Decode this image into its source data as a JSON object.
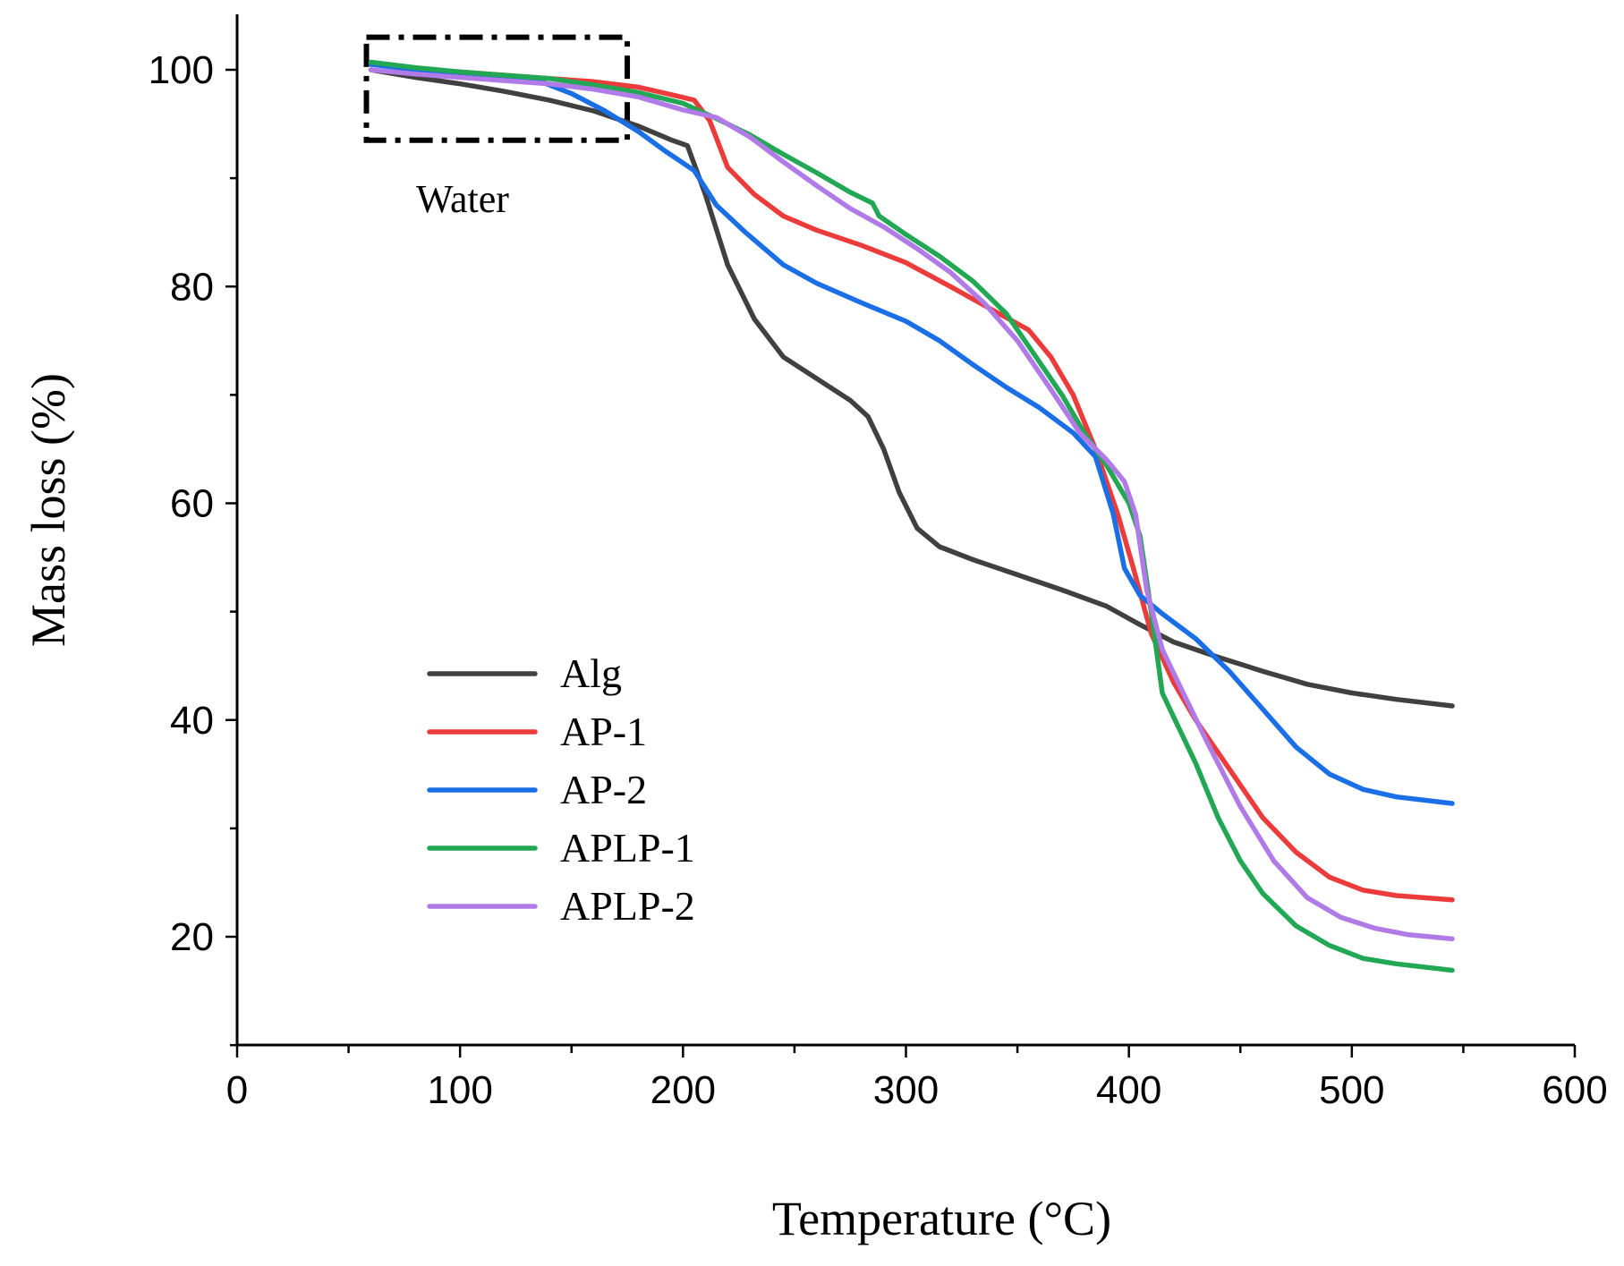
{
  "chart_data": {
    "type": "line",
    "title": "",
    "xlabel": "Temperature (°C)",
    "ylabel": "Mass loss (%)",
    "xlim": [
      0,
      600
    ],
    "ylim": [
      10,
      105
    ],
    "x_ticks": [
      0,
      100,
      200,
      300,
      400,
      500,
      600
    ],
    "y_ticks": [
      20,
      40,
      60,
      80,
      100
    ],
    "grid": false,
    "legend_position": "lower-left",
    "series": [
      {
        "name": "Alg",
        "color": "#404040",
        "points": [
          [
            60,
            100
          ],
          [
            80,
            99.3
          ],
          [
            100,
            98.7
          ],
          [
            120,
            98
          ],
          [
            140,
            97.2
          ],
          [
            160,
            96.2
          ],
          [
            180,
            94.8
          ],
          [
            195,
            93.5
          ],
          [
            202,
            93
          ],
          [
            210,
            88.5
          ],
          [
            220,
            82
          ],
          [
            232,
            77
          ],
          [
            245,
            73.5
          ],
          [
            260,
            71.5
          ],
          [
            275,
            69.5
          ],
          [
            283,
            68
          ],
          [
            290,
            65
          ],
          [
            297,
            61
          ],
          [
            305,
            57.7
          ],
          [
            315,
            56
          ],
          [
            330,
            54.8
          ],
          [
            350,
            53.4
          ],
          [
            370,
            52
          ],
          [
            390,
            50.5
          ],
          [
            405,
            48.8
          ],
          [
            420,
            47.2
          ],
          [
            440,
            45.8
          ],
          [
            460,
            44.5
          ],
          [
            480,
            43.3
          ],
          [
            500,
            42.5
          ],
          [
            520,
            41.9
          ],
          [
            545,
            41.3
          ]
        ]
      },
      {
        "name": "AP-1",
        "color": "#ec3b3b",
        "points": [
          [
            60,
            100.5
          ],
          [
            80,
            100.1
          ],
          [
            100,
            99.8
          ],
          [
            120,
            99.5
          ],
          [
            140,
            99.2
          ],
          [
            160,
            98.9
          ],
          [
            180,
            98.4
          ],
          [
            195,
            97.7
          ],
          [
            205,
            97.2
          ],
          [
            212,
            95.3
          ],
          [
            220,
            91
          ],
          [
            232,
            88.5
          ],
          [
            245,
            86.5
          ],
          [
            260,
            85.2
          ],
          [
            280,
            83.8
          ],
          [
            300,
            82.2
          ],
          [
            320,
            80
          ],
          [
            340,
            77.7
          ],
          [
            355,
            76
          ],
          [
            365,
            73.5
          ],
          [
            375,
            70
          ],
          [
            385,
            65
          ],
          [
            395,
            59
          ],
          [
            402,
            54
          ],
          [
            410,
            48
          ],
          [
            420,
            43.5
          ],
          [
            430,
            40
          ],
          [
            445,
            35.5
          ],
          [
            460,
            31
          ],
          [
            475,
            27.8
          ],
          [
            490,
            25.5
          ],
          [
            505,
            24.3
          ],
          [
            520,
            23.8
          ],
          [
            545,
            23.4
          ]
        ]
      },
      {
        "name": "AP-2",
        "color": "#1a6ee6",
        "points": [
          [
            60,
            100.5
          ],
          [
            80,
            100
          ],
          [
            100,
            99.7
          ],
          [
            120,
            99.4
          ],
          [
            135,
            99
          ],
          [
            150,
            97.8
          ],
          [
            165,
            96.2
          ],
          [
            180,
            94.3
          ],
          [
            192,
            92.5
          ],
          [
            205,
            90.7
          ],
          [
            215,
            87.5
          ],
          [
            228,
            85
          ],
          [
            245,
            82
          ],
          [
            260,
            80.3
          ],
          [
            280,
            78.5
          ],
          [
            300,
            76.8
          ],
          [
            315,
            75
          ],
          [
            330,
            72.8
          ],
          [
            345,
            70.7
          ],
          [
            360,
            68.8
          ],
          [
            375,
            66.5
          ],
          [
            385,
            64.3
          ],
          [
            393,
            59
          ],
          [
            398,
            54
          ],
          [
            405,
            51.5
          ],
          [
            415,
            49.8
          ],
          [
            430,
            47.5
          ],
          [
            445,
            44.5
          ],
          [
            460,
            41
          ],
          [
            475,
            37.5
          ],
          [
            490,
            35
          ],
          [
            505,
            33.6
          ],
          [
            520,
            32.9
          ],
          [
            545,
            32.3
          ]
        ]
      },
      {
        "name": "APLP-1",
        "color": "#22a854",
        "points": [
          [
            60,
            100.7
          ],
          [
            80,
            100.2
          ],
          [
            100,
            99.8
          ],
          [
            120,
            99.5
          ],
          [
            140,
            99.2
          ],
          [
            160,
            98.6
          ],
          [
            180,
            97.9
          ],
          [
            200,
            96.9
          ],
          [
            215,
            95.5
          ],
          [
            230,
            94
          ],
          [
            245,
            92.2
          ],
          [
            260,
            90.5
          ],
          [
            275,
            88.7
          ],
          [
            285,
            87.7
          ],
          [
            288,
            86.5
          ],
          [
            300,
            84.8
          ],
          [
            315,
            82.8
          ],
          [
            330,
            80.5
          ],
          [
            345,
            77.5
          ],
          [
            360,
            73
          ],
          [
            370,
            70
          ],
          [
            380,
            66.5
          ],
          [
            390,
            63.5
          ],
          [
            400,
            60
          ],
          [
            405,
            57
          ],
          [
            410,
            50
          ],
          [
            415,
            42.5
          ],
          [
            420,
            40.3
          ],
          [
            430,
            36
          ],
          [
            440,
            31
          ],
          [
            450,
            27
          ],
          [
            460,
            24
          ],
          [
            475,
            21
          ],
          [
            490,
            19.2
          ],
          [
            505,
            18
          ],
          [
            520,
            17.5
          ],
          [
            545,
            16.9
          ]
        ]
      },
      {
        "name": "APLP-2",
        "color": "#b07be6",
        "points": [
          [
            60,
            100
          ],
          [
            80,
            99.6
          ],
          [
            100,
            99.3
          ],
          [
            120,
            99
          ],
          [
            140,
            98.7
          ],
          [
            160,
            98.2
          ],
          [
            180,
            97.5
          ],
          [
            200,
            96.3
          ],
          [
            215,
            95.6
          ],
          [
            230,
            93.8
          ],
          [
            245,
            91.5
          ],
          [
            260,
            89.3
          ],
          [
            275,
            87.2
          ],
          [
            290,
            85.5
          ],
          [
            305,
            83.5
          ],
          [
            320,
            81.3
          ],
          [
            335,
            78.5
          ],
          [
            350,
            75
          ],
          [
            365,
            70.5
          ],
          [
            378,
            66.5
          ],
          [
            390,
            64
          ],
          [
            398,
            62
          ],
          [
            403,
            59
          ],
          [
            408,
            52
          ],
          [
            415,
            46.5
          ],
          [
            422,
            43.5
          ],
          [
            435,
            38
          ],
          [
            450,
            32
          ],
          [
            465,
            27
          ],
          [
            480,
            23.6
          ],
          [
            495,
            21.8
          ],
          [
            510,
            20.8
          ],
          [
            525,
            20.2
          ],
          [
            545,
            19.8
          ]
        ]
      }
    ],
    "annotations": [
      {
        "label": "Water",
        "x_range": [
          58,
          175
        ],
        "y_range": [
          93.5,
          103
        ]
      }
    ]
  }
}
